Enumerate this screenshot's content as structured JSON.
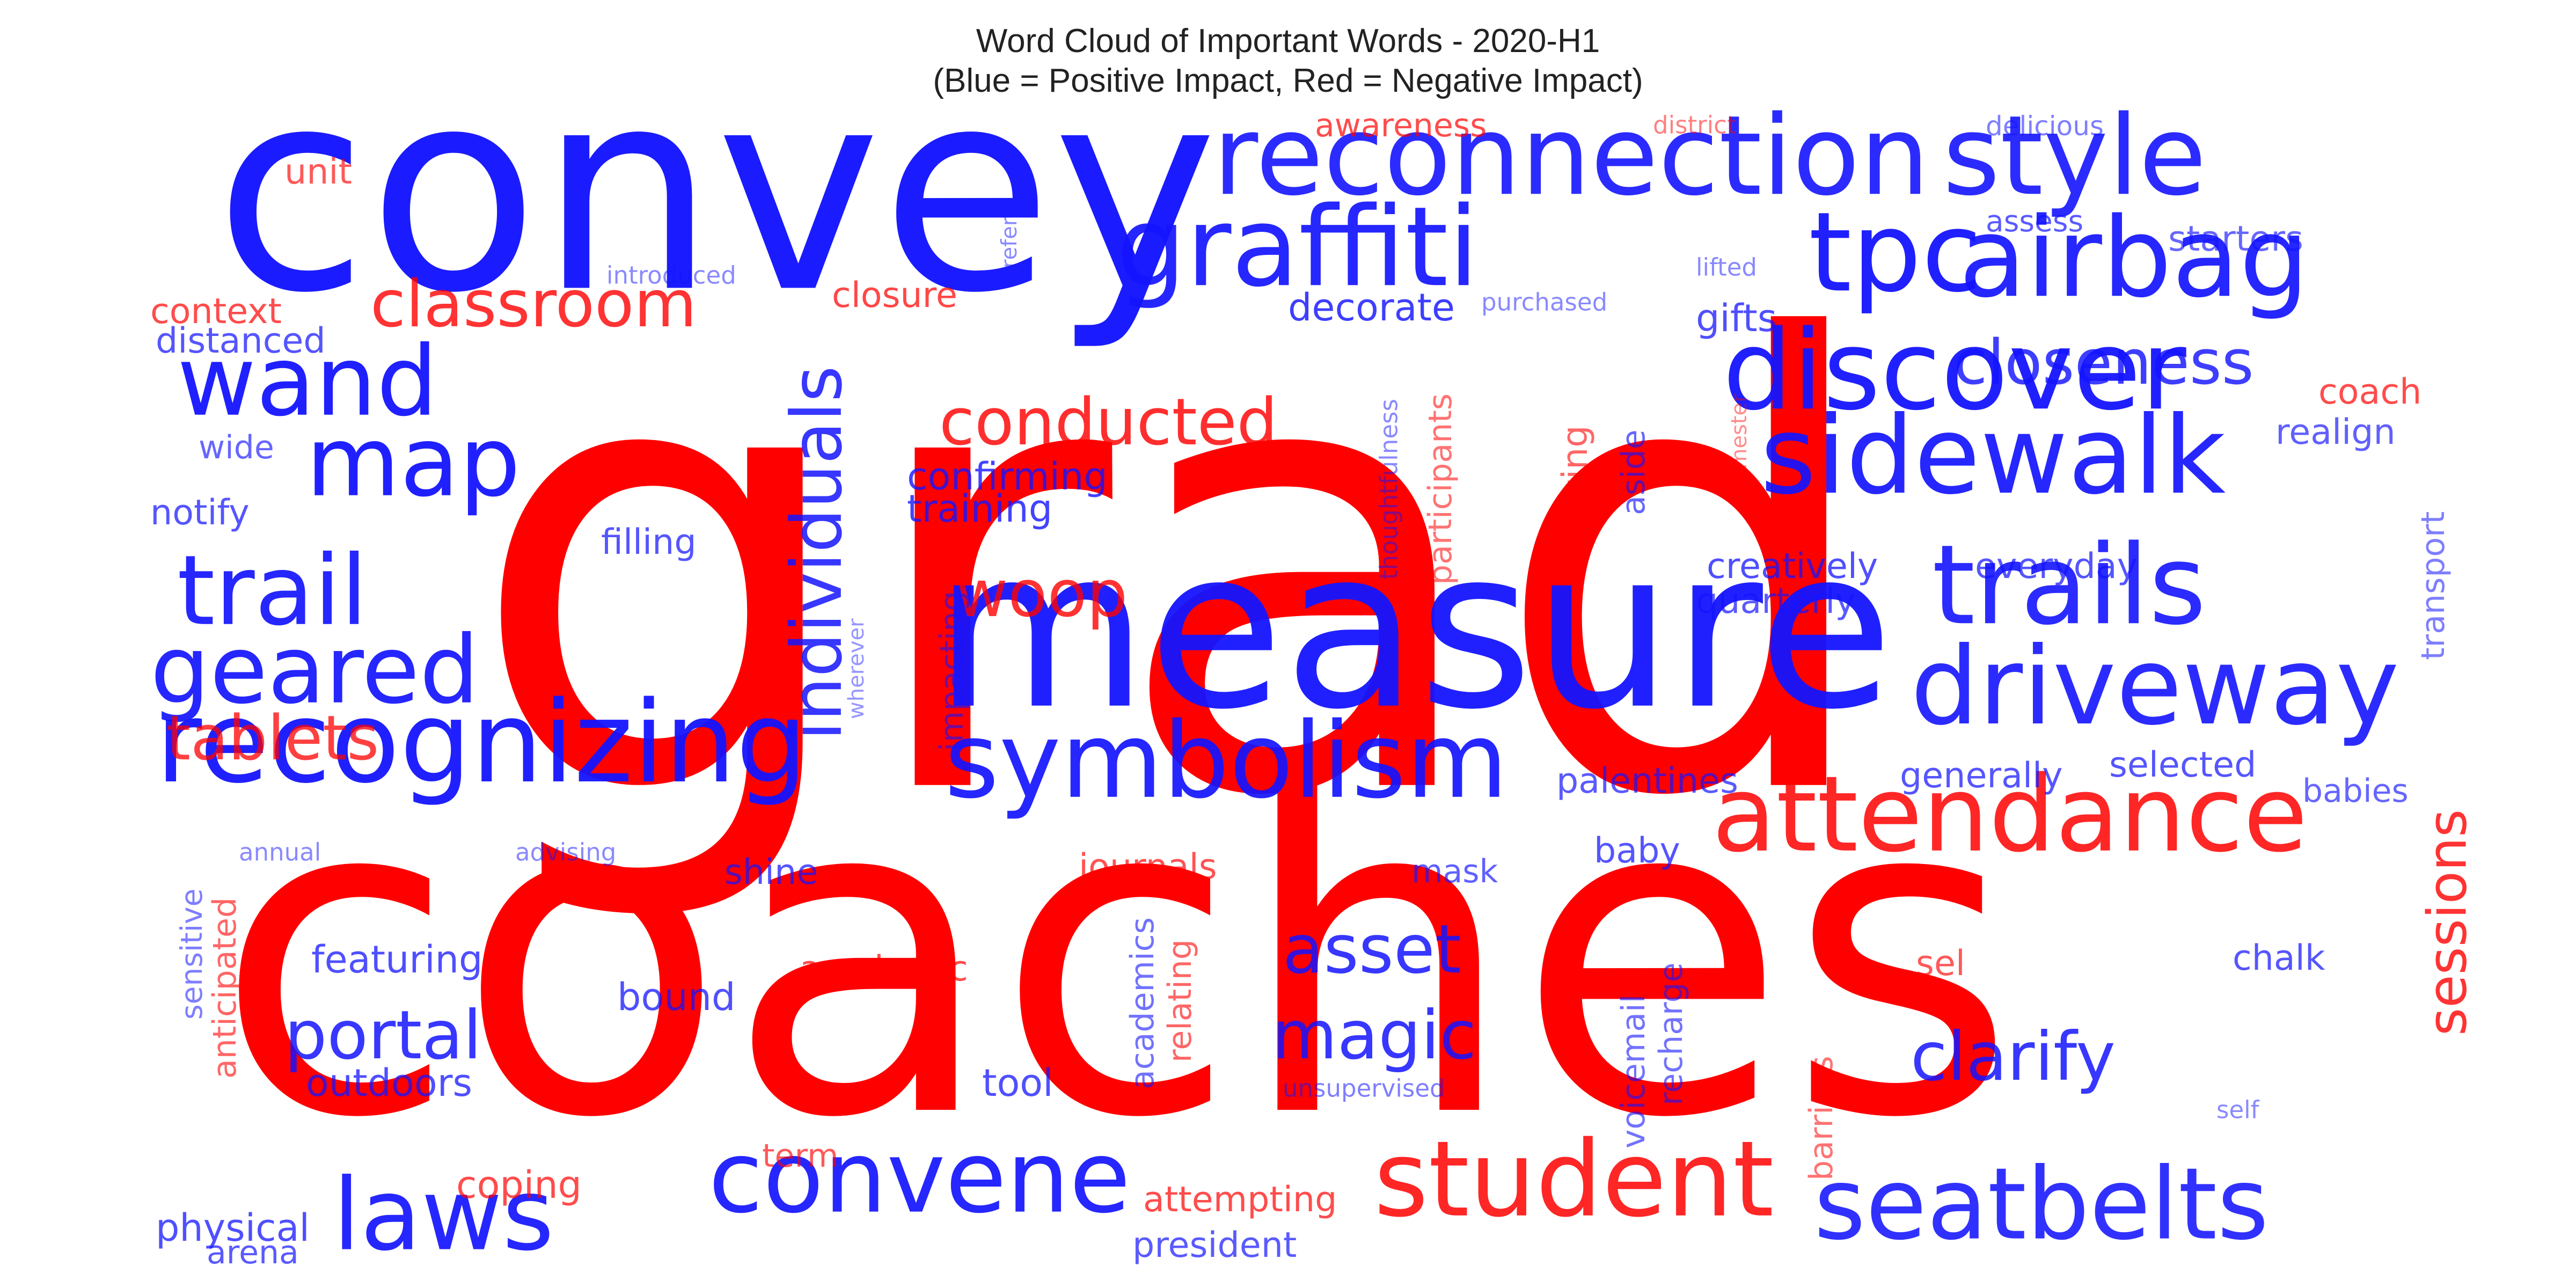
{
  "chart_data": {
    "type": "wordcloud",
    "title": "Word Cloud of Important Words - 2020-H1",
    "subtitle": "(Blue = Positive Impact, Red = Negative Impact)",
    "colors": {
      "positive": "#1414ff",
      "negative": "#ff0000"
    },
    "words": [
      {
        "text": "grad",
        "impact": "negative",
        "weight": 1.0
      },
      {
        "text": "coaches",
        "impact": "negative",
        "weight": 0.98
      },
      {
        "text": "convey",
        "impact": "positive",
        "weight": 0.62
      },
      {
        "text": "measure",
        "impact": "positive",
        "weight": 0.58
      },
      {
        "text": "reconnection",
        "impact": "positive",
        "weight": 0.3
      },
      {
        "text": "style",
        "impact": "positive",
        "weight": 0.3
      },
      {
        "text": "graffiti",
        "impact": "positive",
        "weight": 0.3
      },
      {
        "text": "tpc",
        "impact": "positive",
        "weight": 0.3
      },
      {
        "text": "airbag",
        "impact": "positive",
        "weight": 0.3
      },
      {
        "text": "discover",
        "impact": "positive",
        "weight": 0.3
      },
      {
        "text": "sidewalk",
        "impact": "positive",
        "weight": 0.28
      },
      {
        "text": "trails",
        "impact": "positive",
        "weight": 0.3
      },
      {
        "text": "driveway",
        "impact": "positive",
        "weight": 0.28
      },
      {
        "text": "recognizing",
        "impact": "positive",
        "weight": 0.3
      },
      {
        "text": "symbolism",
        "impact": "positive",
        "weight": 0.28
      },
      {
        "text": "attendance",
        "impact": "negative",
        "weight": 0.28
      },
      {
        "text": "student",
        "impact": "negative",
        "weight": 0.28
      },
      {
        "text": "seatbelts",
        "impact": "positive",
        "weight": 0.26
      },
      {
        "text": "convene",
        "impact": "positive",
        "weight": 0.26
      },
      {
        "text": "laws",
        "impact": "positive",
        "weight": 0.26
      },
      {
        "text": "map",
        "impact": "positive",
        "weight": 0.28
      },
      {
        "text": "wand",
        "impact": "positive",
        "weight": 0.28
      },
      {
        "text": "trail",
        "impact": "positive",
        "weight": 0.28
      },
      {
        "text": "geared",
        "impact": "positive",
        "weight": 0.26
      },
      {
        "text": "classroom",
        "impact": "negative",
        "weight": 0.18
      },
      {
        "text": "conducted",
        "impact": "negative",
        "weight": 0.18
      },
      {
        "text": "individuals",
        "impact": "positive",
        "weight": 0.2
      },
      {
        "text": "woop",
        "impact": "negative",
        "weight": 0.18
      },
      {
        "text": "closeness",
        "impact": "positive",
        "weight": 0.16
      },
      {
        "text": "tablets",
        "impact": "negative",
        "weight": 0.17
      },
      {
        "text": "portal",
        "impact": "positive",
        "weight": 0.18
      },
      {
        "text": "asset",
        "impact": "positive",
        "weight": 0.18
      },
      {
        "text": "magic",
        "impact": "positive",
        "weight": 0.18
      },
      {
        "text": "clarify",
        "impact": "positive",
        "weight": 0.18
      },
      {
        "text": "sessions",
        "impact": "negative",
        "weight": 0.17
      },
      {
        "text": "awareness",
        "impact": "negative",
        "weight": 0.09
      },
      {
        "text": "district",
        "impact": "negative",
        "weight": 0.06
      },
      {
        "text": "delicious",
        "impact": "positive",
        "weight": 0.07
      },
      {
        "text": "unit",
        "impact": "negative",
        "weight": 0.09
      },
      {
        "text": "introduced",
        "impact": "positive",
        "weight": 0.06
      },
      {
        "text": "refer",
        "impact": "positive",
        "weight": 0.05
      },
      {
        "text": "closure",
        "impact": "negative",
        "weight": 0.1
      },
      {
        "text": "decorate",
        "impact": "positive",
        "weight": 0.1
      },
      {
        "text": "purchased",
        "impact": "positive",
        "weight": 0.06
      },
      {
        "text": "gifts",
        "impact": "positive",
        "weight": 0.1
      },
      {
        "text": "lifted",
        "impact": "positive",
        "weight": 0.06
      },
      {
        "text": "assess",
        "impact": "positive",
        "weight": 0.08
      },
      {
        "text": "starters",
        "impact": "positive",
        "weight": 0.09
      },
      {
        "text": "context",
        "impact": "negative",
        "weight": 0.09
      },
      {
        "text": "distanced",
        "impact": "positive",
        "weight": 0.09
      },
      {
        "text": "wide",
        "impact": "positive",
        "weight": 0.08
      },
      {
        "text": "notify",
        "impact": "positive",
        "weight": 0.09
      },
      {
        "text": "confirming",
        "impact": "positive",
        "weight": 0.1
      },
      {
        "text": "training",
        "impact": "positive",
        "weight": 0.1
      },
      {
        "text": "filling",
        "impact": "positive",
        "weight": 0.09
      },
      {
        "text": "thoughtfulness",
        "impact": "positive",
        "weight": 0.06
      },
      {
        "text": "participants",
        "impact": "negative",
        "weight": 0.08
      },
      {
        "text": "bullying",
        "impact": "negative",
        "weight": 0.08
      },
      {
        "text": "aside",
        "impact": "positive",
        "weight": 0.08
      },
      {
        "text": "semester",
        "impact": "negative",
        "weight": 0.05
      },
      {
        "text": "coach",
        "impact": "negative",
        "weight": 0.09
      },
      {
        "text": "realign",
        "impact": "positive",
        "weight": 0.09
      },
      {
        "text": "transport",
        "impact": "positive",
        "weight": 0.08
      },
      {
        "text": "creatively",
        "impact": "positive",
        "weight": 0.09
      },
      {
        "text": "everyday",
        "impact": "positive",
        "weight": 0.09
      },
      {
        "text": "quarterly",
        "impact": "positive",
        "weight": 0.09
      },
      {
        "text": "impacting",
        "impact": "positive",
        "weight": 0.07
      },
      {
        "text": "wherever",
        "impact": "positive",
        "weight": 0.05
      },
      {
        "text": "palentines",
        "impact": "positive",
        "weight": 0.09
      },
      {
        "text": "generally",
        "impact": "positive",
        "weight": 0.09
      },
      {
        "text": "selected",
        "impact": "positive",
        "weight": 0.09
      },
      {
        "text": "babies",
        "impact": "positive",
        "weight": 0.09
      },
      {
        "text": "annual",
        "impact": "positive",
        "weight": 0.06
      },
      {
        "text": "advising",
        "impact": "positive",
        "weight": 0.06
      },
      {
        "text": "shine",
        "impact": "positive",
        "weight": 0.09
      },
      {
        "text": "journals",
        "impact": "negative",
        "weight": 0.09
      },
      {
        "text": "mask",
        "impact": "positive",
        "weight": 0.08
      },
      {
        "text": "baby",
        "impact": "positive",
        "weight": 0.09
      },
      {
        "text": "sensitive",
        "impact": "positive",
        "weight": 0.07
      },
      {
        "text": "anticipated",
        "impact": "negative",
        "weight": 0.08
      },
      {
        "text": "featuring",
        "impact": "positive",
        "weight": 0.09
      },
      {
        "text": "academic",
        "impact": "negative",
        "weight": 0.09
      },
      {
        "text": "academics",
        "impact": "positive",
        "weight": 0.08
      },
      {
        "text": "relating",
        "impact": "negative",
        "weight": 0.08
      },
      {
        "text": "bound",
        "impact": "positive",
        "weight": 0.09
      },
      {
        "text": "voicemail",
        "impact": "positive",
        "weight": 0.08
      },
      {
        "text": "recharge",
        "impact": "positive",
        "weight": 0.08
      },
      {
        "text": "sel",
        "impact": "negative",
        "weight": 0.09
      },
      {
        "text": "chalk",
        "impact": "positive",
        "weight": 0.09
      },
      {
        "text": "outdoors",
        "impact": "positive",
        "weight": 0.09
      },
      {
        "text": "tool",
        "impact": "positive",
        "weight": 0.09
      },
      {
        "text": "unsupervised",
        "impact": "positive",
        "weight": 0.06
      },
      {
        "text": "barriers",
        "impact": "negative",
        "weight": 0.08
      },
      {
        "text": "self",
        "impact": "positive",
        "weight": 0.05
      },
      {
        "text": "term",
        "impact": "negative",
        "weight": 0.08
      },
      {
        "text": "coping",
        "impact": "negative",
        "weight": 0.09
      },
      {
        "text": "attempting",
        "impact": "negative",
        "weight": 0.09
      },
      {
        "text": "physical",
        "impact": "positive",
        "weight": 0.09
      },
      {
        "text": "arena",
        "impact": "positive",
        "weight": 0.08
      },
      {
        "text": "president",
        "impact": "positive",
        "weight": 0.09
      }
    ]
  }
}
